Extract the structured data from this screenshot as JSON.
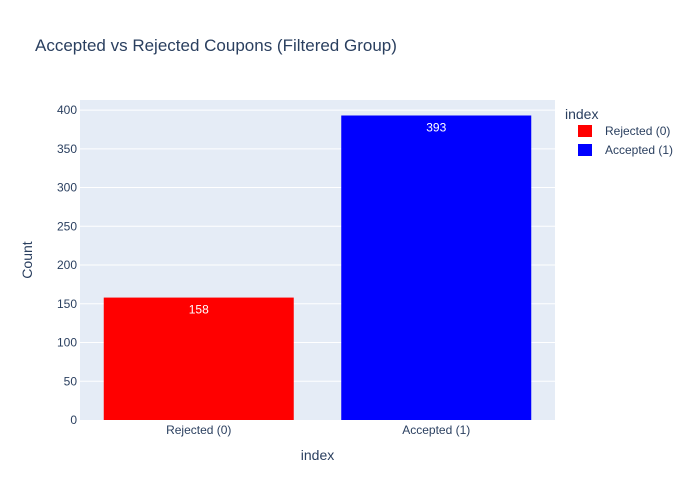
{
  "chart_data": {
    "type": "bar",
    "title": "Accepted vs Rejected Coupons (Filtered Group)",
    "xlabel": "index",
    "ylabel": "Count",
    "categories": [
      "Rejected (0)",
      "Accepted (1)"
    ],
    "values": [
      158,
      393
    ],
    "data_labels": [
      "158",
      "393"
    ],
    "colors": [
      "#ff0000",
      "#0000ff"
    ],
    "ylim": [
      0,
      413
    ],
    "yticks": [
      0,
      50,
      100,
      150,
      200,
      250,
      300,
      350,
      400
    ],
    "ytick_labels": [
      "0",
      "50",
      "100",
      "150",
      "200",
      "250",
      "300",
      "350",
      "400"
    ],
    "grid": true,
    "background_color": "#e5ecf6",
    "legend": {
      "title": "index",
      "placement": "right",
      "entries": [
        "Rejected (0)",
        "Accepted (1)"
      ]
    }
  }
}
